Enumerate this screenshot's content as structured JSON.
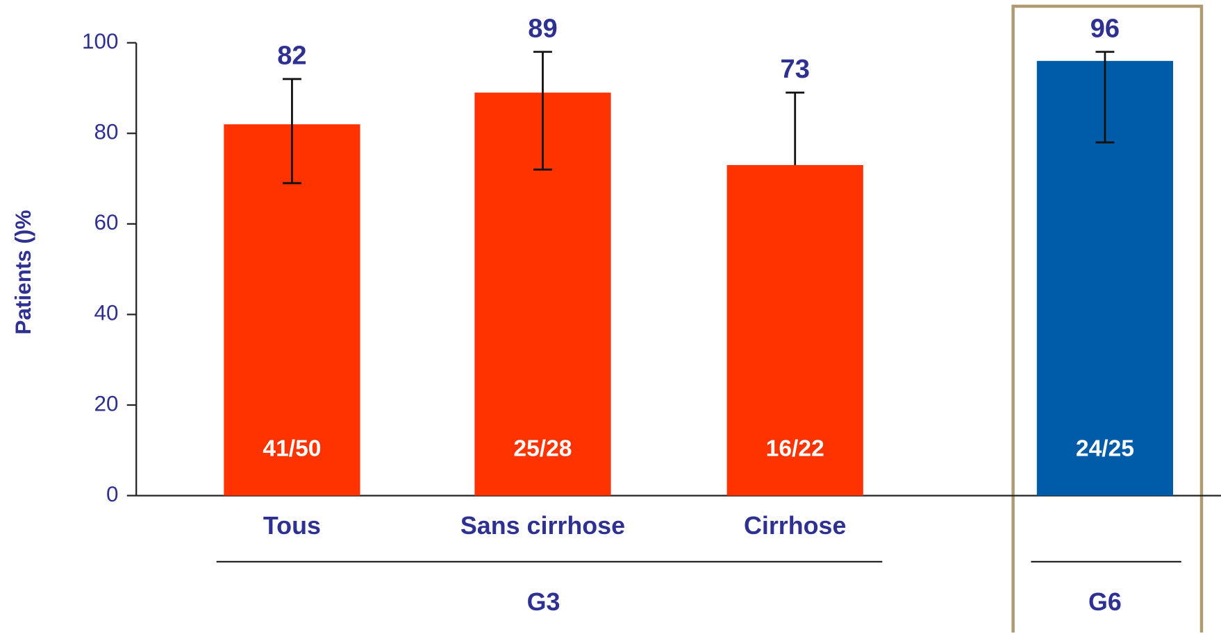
{
  "chart_data": {
    "type": "bar",
    "y_label": "Patients ()%",
    "categories": [
      "Tous",
      "Sans cirrhose",
      "Cirrhose",
      ""
    ],
    "values": [
      82,
      89,
      73,
      96
    ],
    "ci_high": [
      92,
      98,
      89,
      98
    ],
    "ci_low": [
      69,
      72,
      null,
      78
    ],
    "annotations": [
      "41/50",
      "25/28",
      "16/22",
      "24/25"
    ],
    "colors": [
      "#ff3300",
      "#ff3300",
      "#ff3300",
      "#005ca8"
    ],
    "groups": [
      {
        "label": "G3",
        "first": 0,
        "last": 2
      },
      {
        "label": "G6",
        "first": 3,
        "last": 3
      }
    ],
    "ylim": [
      0,
      100
    ],
    "yticks": [
      0,
      20,
      40,
      60,
      80,
      100
    ]
  }
}
